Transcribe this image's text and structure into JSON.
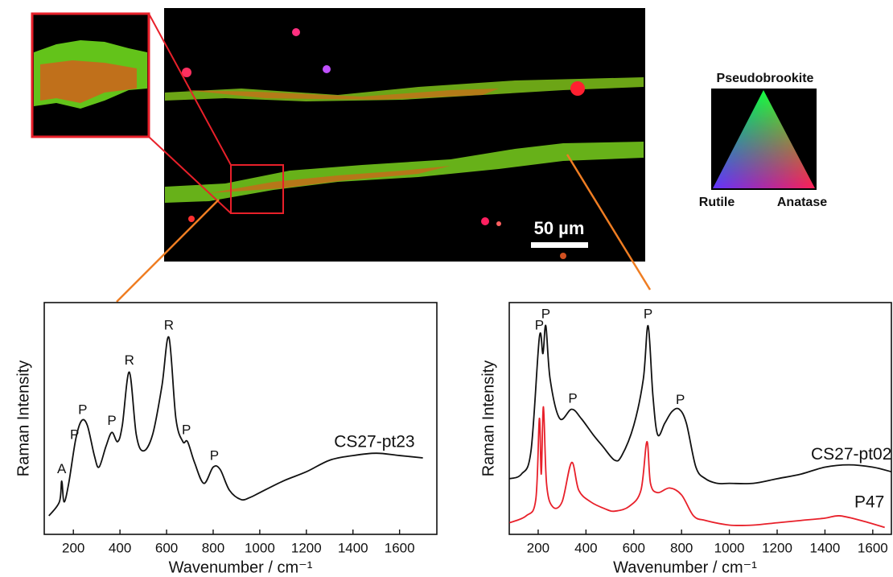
{
  "map": {
    "legend_labels": [
      "Pseudobrookite",
      "Rutile",
      "Anatase"
    ],
    "scale_bar": "50 µm"
  },
  "chart_data": [
    {
      "type": "line",
      "xlabel": "Wavenumber / cm⁻¹",
      "ylabel": "Raman Intensity",
      "xlim": [
        75,
        1760
      ],
      "ylim": [
        0,
        100
      ],
      "xticks": [
        200,
        400,
        600,
        800,
        1000,
        1200,
        1400,
        1600
      ],
      "grid": false,
      "series": [
        {
          "name": "CS27-pt23",
          "color": "#111111",
          "x": [
            95,
            140,
            150,
            160,
            180,
            210,
            235,
            260,
            290,
            310,
            340,
            365,
            390,
            410,
            440,
            470,
            500,
            540,
            580,
            610,
            640,
            670,
            690,
            720,
            760,
            800,
            830,
            870,
            920,
            960,
            1000,
            1100,
            1200,
            1300,
            1400,
            1500,
            1600,
            1700
          ],
          "values": [
            8,
            14,
            23,
            14,
            22,
            41,
            49,
            47,
            34,
            29,
            38,
            44,
            40,
            47,
            70,
            43,
            36,
            43,
            64,
            85,
            50,
            40,
            40,
            31,
            22,
            29,
            28,
            19,
            15,
            16,
            18,
            23,
            27,
            32,
            34,
            35,
            34,
            33
          ]
        }
      ],
      "annotations": [
        {
          "text": "A",
          "x": 150
        },
        {
          "text": "P",
          "x": 205
        },
        {
          "text": "P",
          "x": 240
        },
        {
          "text": "P",
          "x": 365
        },
        {
          "text": "R",
          "x": 440
        },
        {
          "text": "R",
          "x": 610
        },
        {
          "text": "P",
          "x": 685
        },
        {
          "text": "P",
          "x": 805
        }
      ]
    },
    {
      "type": "line",
      "xlabel": "Wavenumber / cm⁻¹",
      "ylabel": "Raman Intensity",
      "xlim": [
        79,
        1678
      ],
      "ylim": [
        0,
        100
      ],
      "xticks": [
        200,
        400,
        600,
        800,
        1000,
        1200,
        1400,
        1600
      ],
      "grid": false,
      "series": [
        {
          "name": "CS27-pt02",
          "color": "#111111",
          "x": [
            80,
            130,
            170,
            205,
            220,
            232,
            250,
            290,
            340,
            380,
            430,
            470,
            520,
            550,
            600,
            640,
            660,
            680,
            700,
            730,
            760,
            790,
            820,
            860,
            900,
            950,
            1000,
            1100,
            1200,
            1300,
            1400,
            1500,
            1600,
            1678
          ],
          "values": [
            24,
            26,
            36,
            85,
            78,
            90,
            67,
            50,
            54,
            50,
            43,
            38,
            32,
            34,
            47,
            67,
            90,
            60,
            43,
            48,
            53,
            54,
            48,
            29,
            24,
            22,
            22,
            22,
            24,
            26,
            29,
            30,
            29,
            27
          ]
        },
        {
          "name": "P47",
          "color": "#e8202a",
          "x": [
            80,
            150,
            190,
            205,
            213,
            222,
            235,
            260,
            300,
            340,
            370,
            420,
            480,
            520,
            580,
            630,
            655,
            670,
            700,
            750,
            800,
            850,
            900,
            1000,
            1100,
            1200,
            1300,
            1400,
            1460,
            1550,
            1650
          ],
          "values": [
            5,
            8,
            15,
            50,
            26,
            55,
            22,
            12,
            14,
            31,
            19,
            14,
            11,
            10,
            12,
            19,
            40,
            22,
            18,
            20,
            17,
            8,
            6,
            4,
            4,
            5,
            6,
            7,
            8,
            6,
            3
          ]
        }
      ],
      "annotations": [
        {
          "text": "P",
          "x": 205
        },
        {
          "text": "P",
          "x": 232
        },
        {
          "text": "P",
          "x": 345
        },
        {
          "text": "P",
          "x": 660
        },
        {
          "text": "P",
          "x": 795
        }
      ]
    }
  ]
}
